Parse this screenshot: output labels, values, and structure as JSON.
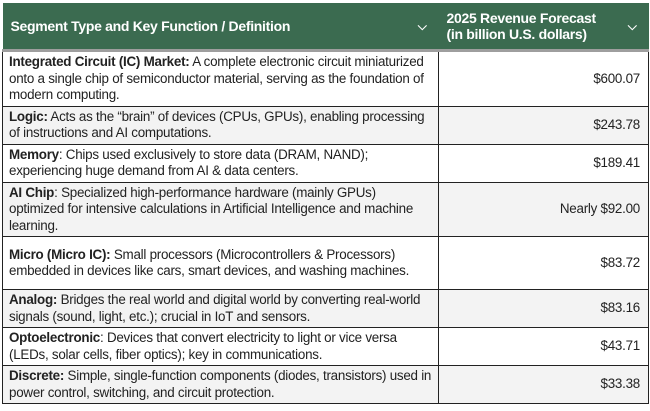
{
  "colors": {
    "header_bg": "#3b6b50",
    "header_text": "#ffffff",
    "alt_row": "#f3f3f3"
  },
  "headers": [
    {
      "label": "Segment Type and Key Function / Definition",
      "icon": "chevron-down-icon"
    },
    {
      "label": "2025 Revenue Forecast (in billion U.S. dollars)",
      "icon": "chevron-down-icon"
    }
  ],
  "rows": [
    {
      "term": "Integrated Circuit (IC) Market:",
      "definition": " A complete electronic circuit miniaturized onto a single chip of semiconductor material, serving as the foundation of modern computing.",
      "value": "$600.07"
    },
    {
      "term": "Logic:",
      "definition": " Acts as the “brain” of devices (CPUs, GPUs), enabling processing of instructions and AI computations.",
      "value": "$243.78"
    },
    {
      "term": "Memory",
      "definition": ": Chips used exclusively to store data (DRAM, NAND); experiencing huge demand from AI & data centers.",
      "value": "$189.41"
    },
    {
      "term": "AI Chip",
      "definition": ": Specialized high-performance hardware (mainly GPUs) optimized for intensive calculations in Artificial Intelligence and machine learning.",
      "value": "Nearly $92.00"
    },
    {
      "term": "Micro (Micro IC):",
      "definition": " Small processors (Microcontrollers & Processors) embedded in devices like cars, smart devices, and washing machines.",
      "value": "$83.72"
    },
    {
      "term": "Analog:",
      "definition": " Bridges the real world and digital world by converting real-world signals (sound, light, etc.); crucial in IoT and sensors.",
      "value": "$83.16"
    },
    {
      "term": "Optoelectronic",
      "definition": ": Devices that convert electricity to light or vice versa (LEDs, solar cells, fiber optics); key in communications.",
      "value": "$43.71"
    },
    {
      "term": "Discrete:",
      "definition": " Simple, single-function components (diodes, transistors) used in power control, switching, and circuit protection.",
      "value": "$33.38"
    }
  ]
}
